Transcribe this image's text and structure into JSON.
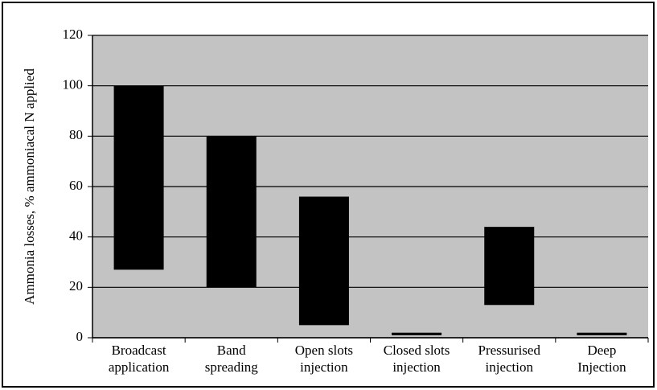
{
  "chart_data": {
    "type": "range_bar",
    "y_label": "Ammonia losses, % ammoniacal N applied",
    "categories": [
      [
        "Broadcast",
        "application"
      ],
      [
        "Band",
        "spreading"
      ],
      [
        "Open slots",
        "injection"
      ],
      [
        "Closed slots",
        "injection"
      ],
      [
        "Pressurised",
        "injection"
      ],
      [
        "Deep",
        "Injection"
      ]
    ],
    "low": [
      27,
      20,
      5,
      1,
      13,
      1
    ],
    "high": [
      100,
      80,
      56,
      2,
      44,
      2
    ],
    "color": "#000000",
    "plot_background": "#c3c3c3",
    "ylim": [
      0,
      120
    ],
    "yticks": [
      0,
      20,
      40,
      60,
      80,
      100,
      120
    ],
    "grid": true
  }
}
